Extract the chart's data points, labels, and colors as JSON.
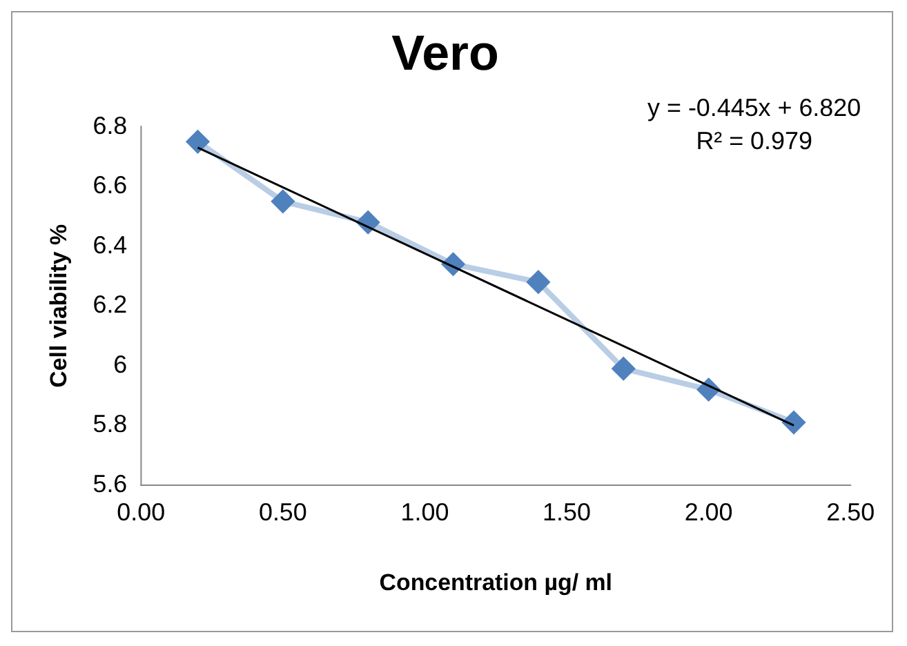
{
  "chart_data": {
    "type": "line",
    "title": "Vero",
    "xlabel": "Concentration µg/ ml",
    "ylabel": "Cell viability %",
    "annotations": [
      "y = -0.445x + 6.820",
      "R² = 0.979"
    ],
    "x": [
      0.2,
      0.5,
      0.8,
      1.1,
      1.4,
      1.7,
      2.0,
      2.3
    ],
    "series": [
      {
        "color": "#4f81bd",
        "marker": "diamond",
        "values": [
          6.75,
          6.55,
          6.48,
          6.34,
          6.28,
          5.99,
          5.92,
          5.81
        ]
      },
      {
        "type": "line",
        "color": "#000000",
        "marker": "none",
        "x": [
          0.2,
          2.3
        ],
        "values": [
          6.73,
          5.8
        ]
      }
    ],
    "xlim": [
      0,
      2.5
    ],
    "xticks": [
      {
        "value": 0,
        "label": "0.00"
      },
      {
        "value": 0.5,
        "label": "0.50"
      },
      {
        "value": 1,
        "label": "1.00"
      },
      {
        "value": 1.5,
        "label": "1.50"
      },
      {
        "value": 2,
        "label": "2.00"
      },
      {
        "value": 2.5,
        "label": "2.50"
      }
    ],
    "ylim": [
      5.6,
      6.8
    ],
    "yticks": [
      5.6,
      5.8,
      6,
      6.2,
      6.4,
      6.6,
      6.8
    ],
    "grid": false,
    "legend": false
  }
}
